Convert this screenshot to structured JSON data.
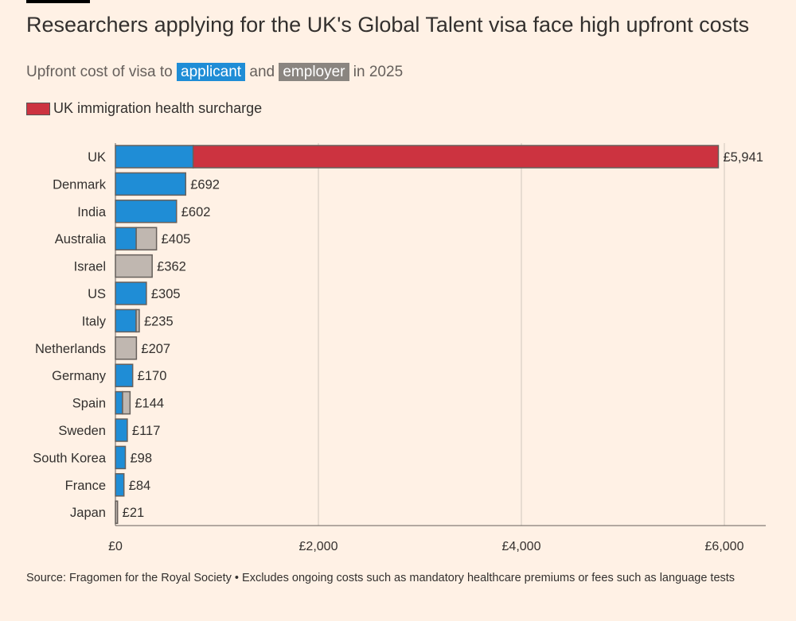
{
  "title": "Researchers applying for the UK's Global Talent visa face high upfront costs",
  "subtitle": {
    "prefix": "Upfront cost of visa to",
    "applicant": "applicant",
    "and": "and",
    "employer": "employer",
    "suffix": "in 2025"
  },
  "legend": {
    "surcharge": "UK immigration health surcharge"
  },
  "colors": {
    "applicant": "#1f8dd6",
    "employer": "#c0b7b0",
    "surcharge": "#cc3340",
    "background": "#fff1e5"
  },
  "source": "Source: Fragomen for the Royal Society • Excludes ongoing costs such as mandatory healthcare premiums or fees such as language tests",
  "chart_data": {
    "type": "bar",
    "orientation": "horizontal",
    "stacked": true,
    "categories": [
      "UK",
      "Denmark",
      "India",
      "Australia",
      "Israel",
      "US",
      "Italy",
      "Netherlands",
      "Germany",
      "Spain",
      "Sweden",
      "South Korea",
      "France",
      "Japan"
    ],
    "series": [
      {
        "name": "applicant",
        "values": [
          766,
          692,
          602,
          205,
          0,
          305,
          204,
          0,
          170,
          70,
          117,
          98,
          84,
          0
        ]
      },
      {
        "name": "employer",
        "values": [
          0,
          0,
          0,
          200,
          362,
          0,
          31,
          207,
          0,
          74,
          0,
          0,
          0,
          21
        ]
      },
      {
        "name": "UK immigration health surcharge",
        "values": [
          5175,
          0,
          0,
          0,
          0,
          0,
          0,
          0,
          0,
          0,
          0,
          0,
          0,
          0
        ]
      }
    ],
    "labels": [
      "£5,941",
      "£692",
      "£602",
      "£405",
      "£362",
      "£305",
      "£235",
      "£207",
      "£170",
      "£144",
      "£117",
      "£98",
      "£84",
      "£21"
    ],
    "totals": [
      5941,
      692,
      602,
      405,
      362,
      305,
      235,
      207,
      170,
      144,
      117,
      98,
      84,
      21
    ],
    "xlim": [
      0,
      6400
    ],
    "xticks": [
      0,
      2000,
      4000,
      6000
    ],
    "xtick_labels": [
      "£0",
      "£2,000",
      "£4,000",
      "£6,000"
    ],
    "grid": "vertical"
  }
}
